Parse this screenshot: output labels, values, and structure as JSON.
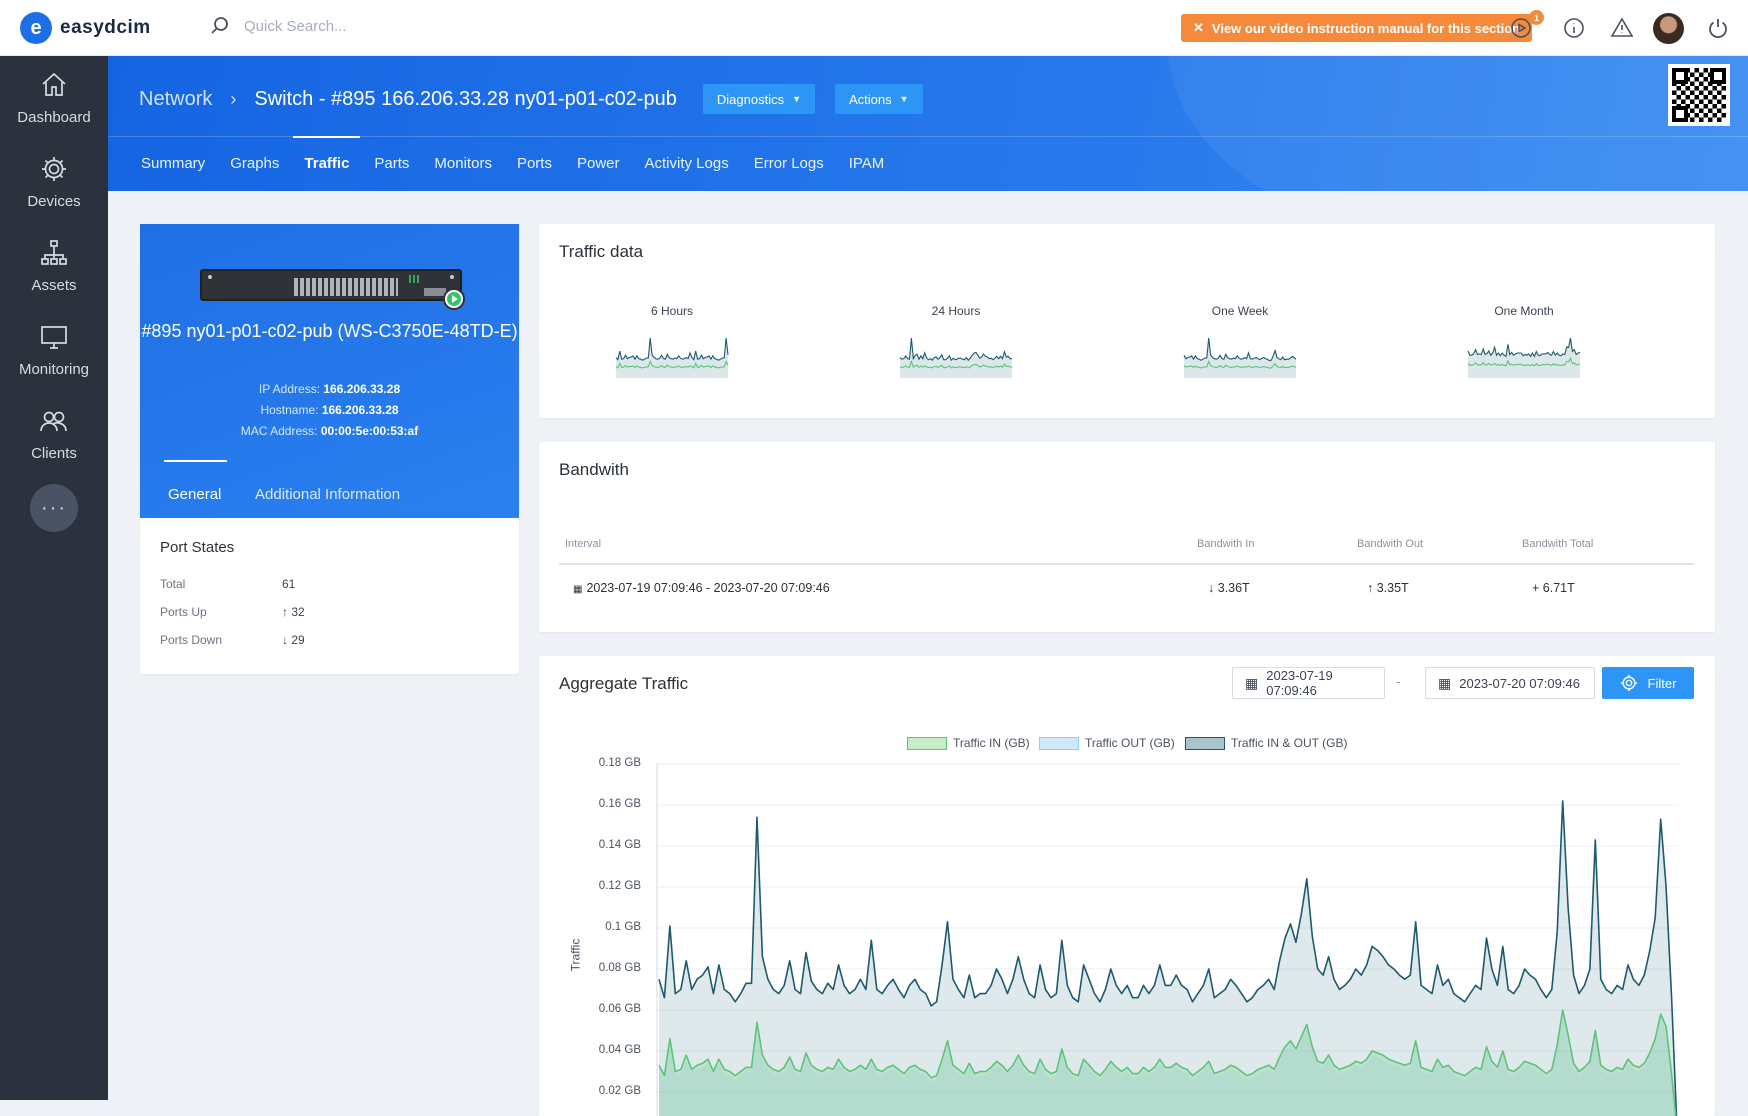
{
  "app": {
    "brand": "easydcim",
    "search_placeholder": "Quick Search...",
    "promo": "View our video instruction manual for this section",
    "notif_count": "1"
  },
  "sidebar": [
    {
      "label": "Dashboard",
      "icon": "home-icon"
    },
    {
      "label": "Devices",
      "icon": "gear-icon"
    },
    {
      "label": "Assets",
      "icon": "hierarchy-icon"
    },
    {
      "label": "Monitoring",
      "icon": "monitor-icon"
    },
    {
      "label": "Clients",
      "icon": "users-icon"
    }
  ],
  "more": "···",
  "breadcrumb": {
    "parent": "Network",
    "current": "Switch - #895 166.206.33.28 ny01-p01-c02-pub"
  },
  "header_buttons": {
    "diagnostics": "Diagnostics",
    "actions": "Actions"
  },
  "tabs": [
    "Summary",
    "Graphs",
    "Traffic",
    "Parts",
    "Monitors",
    "Ports",
    "Power",
    "Activity Logs",
    "Error Logs",
    "IPAM"
  ],
  "device": {
    "title": "#895 ny01-p01-c02-pub (WS-C3750E-48TD-E)",
    "ip_label": "IP Address:",
    "ip": "166.206.33.28",
    "host_label": "Hostname:",
    "host": "166.206.33.28",
    "mac_label": "MAC Address:",
    "mac": "00:00:5e:00:53:af",
    "tab_general": "General",
    "tab_additional": "Additional Information"
  },
  "port_states": {
    "title": "Port States",
    "rows": [
      {
        "label": "Total",
        "value": "61"
      },
      {
        "label": "Ports Up",
        "value": "↑ 32"
      },
      {
        "label": "Ports Down",
        "value": "↓ 29"
      }
    ]
  },
  "traffic_data": {
    "title": "Traffic data",
    "periods": [
      "6 Hours",
      "24 Hours",
      "One Week",
      "One Month"
    ]
  },
  "bandwidth": {
    "title": "Bandwith",
    "headers": {
      "interval": "Interval",
      "in": "Bandwith In",
      "out": "Bandwith Out",
      "total": "Bandwith Total"
    },
    "row": {
      "interval": "2023-07-19 07:09:46 - 2023-07-20 07:09:46",
      "in": "↓ 3.36T",
      "out": "↑ 3.35T",
      "total": "+ 6.71T"
    }
  },
  "aggregate": {
    "title": "Aggregate Traffic",
    "from": "2023-07-19 07:09:46",
    "to": "2023-07-20 07:09:46",
    "separator": "-",
    "filter_label": "Filter"
  },
  "chart_data": {
    "type": "area",
    "ylabel": "Traffic",
    "ylim": [
      0,
      0.18
    ],
    "yticks": [
      "0.18 GB",
      "0.16 GB",
      "0.14 GB",
      "0.12 GB",
      "0.1 GB",
      "0.08 GB",
      "0.06 GB",
      "0.04 GB",
      "0.02 GB"
    ],
    "grid": true,
    "legend_position": "top",
    "series": [
      {
        "name": "Traffic IN (GB)",
        "color": "#5cc47a",
        "values": [
          0.033,
          0.028,
          0.046,
          0.03,
          0.031,
          0.038,
          0.031,
          0.033,
          0.034,
          0.036,
          0.03,
          0.036,
          0.031,
          0.03,
          0.028,
          0.03,
          0.032,
          0.032,
          0.054,
          0.038,
          0.033,
          0.031,
          0.03,
          0.032,
          0.037,
          0.031,
          0.03,
          0.039,
          0.033,
          0.031,
          0.03,
          0.032,
          0.031,
          0.036,
          0.032,
          0.03,
          0.031,
          0.033,
          0.031,
          0.036,
          0.031,
          0.03,
          0.032,
          0.033,
          0.031,
          0.029,
          0.032,
          0.033,
          0.031,
          0.03,
          0.027,
          0.028,
          0.036,
          0.045,
          0.033,
          0.031,
          0.029,
          0.034,
          0.029,
          0.03,
          0.03,
          0.032,
          0.035,
          0.033,
          0.03,
          0.033,
          0.038,
          0.033,
          0.03,
          0.029,
          0.036,
          0.031,
          0.029,
          0.03,
          0.041,
          0.032,
          0.029,
          0.028,
          0.036,
          0.033,
          0.03,
          0.028,
          0.031,
          0.035,
          0.032,
          0.03,
          0.032,
          0.029,
          0.029,
          0.032,
          0.03,
          0.032,
          0.036,
          0.032,
          0.032,
          0.034,
          0.032,
          0.031,
          0.028,
          0.03,
          0.032,
          0.035,
          0.029,
          0.03,
          0.031,
          0.033,
          0.032,
          0.03,
          0.028,
          0.029,
          0.031,
          0.032,
          0.033,
          0.031,
          0.037,
          0.042,
          0.045,
          0.041,
          0.047,
          0.053,
          0.042,
          0.035,
          0.034,
          0.038,
          0.033,
          0.031,
          0.032,
          0.033,
          0.035,
          0.034,
          0.036,
          0.04,
          0.039,
          0.038,
          0.036,
          0.035,
          0.034,
          0.033,
          0.034,
          0.045,
          0.032,
          0.031,
          0.03,
          0.036,
          0.032,
          0.033,
          0.03,
          0.029,
          0.028,
          0.03,
          0.032,
          0.031,
          0.042,
          0.035,
          0.032,
          0.04,
          0.031,
          0.03,
          0.032,
          0.035,
          0.034,
          0.033,
          0.031,
          0.029,
          0.031,
          0.043,
          0.06,
          0.048,
          0.034,
          0.03,
          0.032,
          0.035,
          0.05,
          0.033,
          0.031,
          0.03,
          0.032,
          0.031,
          0.036,
          0.033,
          0.032,
          0.034,
          0.039,
          0.046,
          0.058,
          0.052,
          0.029,
          0.002
        ]
      },
      {
        "name": "Traffic OUT (GB)",
        "color": "#8ecdf0",
        "values": [
          0.03,
          0.026,
          0.043,
          0.028,
          0.029,
          0.035,
          0.029,
          0.031,
          0.032,
          0.034,
          0.028,
          0.034,
          0.029,
          0.028,
          0.026,
          0.028,
          0.03,
          0.03,
          0.051,
          0.036,
          0.031,
          0.029,
          0.028,
          0.03,
          0.035,
          0.029,
          0.028,
          0.037,
          0.031,
          0.029,
          0.028,
          0.03,
          0.029,
          0.034,
          0.03,
          0.028,
          0.029,
          0.031,
          0.029,
          0.034,
          0.029,
          0.028,
          0.03,
          0.031,
          0.029,
          0.027,
          0.03,
          0.031,
          0.029,
          0.028,
          0.025,
          0.026,
          0.034,
          0.043,
          0.031,
          0.029,
          0.027,
          0.032,
          0.027,
          0.028,
          0.028,
          0.03,
          0.033,
          0.031,
          0.028,
          0.031,
          0.036,
          0.031,
          0.028,
          0.027,
          0.034,
          0.029,
          0.027,
          0.028,
          0.039,
          0.03,
          0.027,
          0.026,
          0.034,
          0.031,
          0.028,
          0.026,
          0.029,
          0.033,
          0.03,
          0.028,
          0.03,
          0.027,
          0.027,
          0.03,
          0.028,
          0.03,
          0.034,
          0.03,
          0.03,
          0.032,
          0.03,
          0.029,
          0.026,
          0.028,
          0.03,
          0.033,
          0.027,
          0.028,
          0.029,
          0.031,
          0.03,
          0.028,
          0.026,
          0.027,
          0.029,
          0.03,
          0.031,
          0.029,
          0.035,
          0.04,
          0.043,
          0.039,
          0.045,
          0.051,
          0.04,
          0.033,
          0.032,
          0.036,
          0.031,
          0.029,
          0.03,
          0.031,
          0.033,
          0.032,
          0.034,
          0.038,
          0.037,
          0.036,
          0.034,
          0.033,
          0.032,
          0.031,
          0.032,
          0.043,
          0.03,
          0.029,
          0.028,
          0.034,
          0.03,
          0.031,
          0.028,
          0.027,
          0.026,
          0.028,
          0.03,
          0.029,
          0.04,
          0.033,
          0.03,
          0.038,
          0.029,
          0.028,
          0.03,
          0.033,
          0.032,
          0.031,
          0.029,
          0.027,
          0.029,
          0.041,
          0.058,
          0.046,
          0.032,
          0.028,
          0.03,
          0.033,
          0.048,
          0.031,
          0.029,
          0.028,
          0.03,
          0.029,
          0.034,
          0.031,
          0.03,
          0.032,
          0.037,
          0.044,
          0.056,
          0.05,
          0.027,
          0.002
        ]
      },
      {
        "name": "Traffic IN & OUT (GB)",
        "color": "#1d5a6e",
        "values": [
          0.075,
          0.066,
          0.101,
          0.068,
          0.07,
          0.084,
          0.07,
          0.075,
          0.077,
          0.081,
          0.068,
          0.082,
          0.07,
          0.068,
          0.064,
          0.068,
          0.073,
          0.073,
          0.154,
          0.086,
          0.075,
          0.07,
          0.068,
          0.072,
          0.084,
          0.07,
          0.068,
          0.088,
          0.074,
          0.07,
          0.068,
          0.073,
          0.07,
          0.082,
          0.072,
          0.068,
          0.07,
          0.075,
          0.07,
          0.094,
          0.07,
          0.068,
          0.072,
          0.075,
          0.07,
          0.066,
          0.072,
          0.075,
          0.07,
          0.068,
          0.062,
          0.064,
          0.082,
          0.103,
          0.075,
          0.07,
          0.066,
          0.077,
          0.066,
          0.068,
          0.068,
          0.072,
          0.08,
          0.075,
          0.068,
          0.075,
          0.086,
          0.075,
          0.068,
          0.066,
          0.082,
          0.07,
          0.066,
          0.068,
          0.094,
          0.072,
          0.066,
          0.064,
          0.082,
          0.075,
          0.068,
          0.064,
          0.07,
          0.08,
          0.072,
          0.068,
          0.072,
          0.066,
          0.066,
          0.072,
          0.068,
          0.072,
          0.082,
          0.072,
          0.072,
          0.077,
          0.072,
          0.07,
          0.064,
          0.068,
          0.072,
          0.08,
          0.066,
          0.068,
          0.07,
          0.075,
          0.072,
          0.068,
          0.064,
          0.066,
          0.07,
          0.072,
          0.075,
          0.07,
          0.084,
          0.095,
          0.102,
          0.093,
          0.107,
          0.124,
          0.096,
          0.08,
          0.077,
          0.086,
          0.075,
          0.07,
          0.072,
          0.075,
          0.08,
          0.077,
          0.082,
          0.091,
          0.089,
          0.086,
          0.082,
          0.08,
          0.077,
          0.075,
          0.077,
          0.103,
          0.072,
          0.07,
          0.068,
          0.082,
          0.072,
          0.075,
          0.068,
          0.066,
          0.064,
          0.068,
          0.072,
          0.07,
          0.095,
          0.08,
          0.072,
          0.091,
          0.07,
          0.068,
          0.072,
          0.08,
          0.077,
          0.075,
          0.07,
          0.066,
          0.07,
          0.098,
          0.162,
          0.11,
          0.077,
          0.068,
          0.072,
          0.08,
          0.143,
          0.075,
          0.07,
          0.068,
          0.072,
          0.07,
          0.082,
          0.075,
          0.072,
          0.077,
          0.089,
          0.105,
          0.153,
          0.12,
          0.066,
          0.002
        ]
      }
    ]
  }
}
